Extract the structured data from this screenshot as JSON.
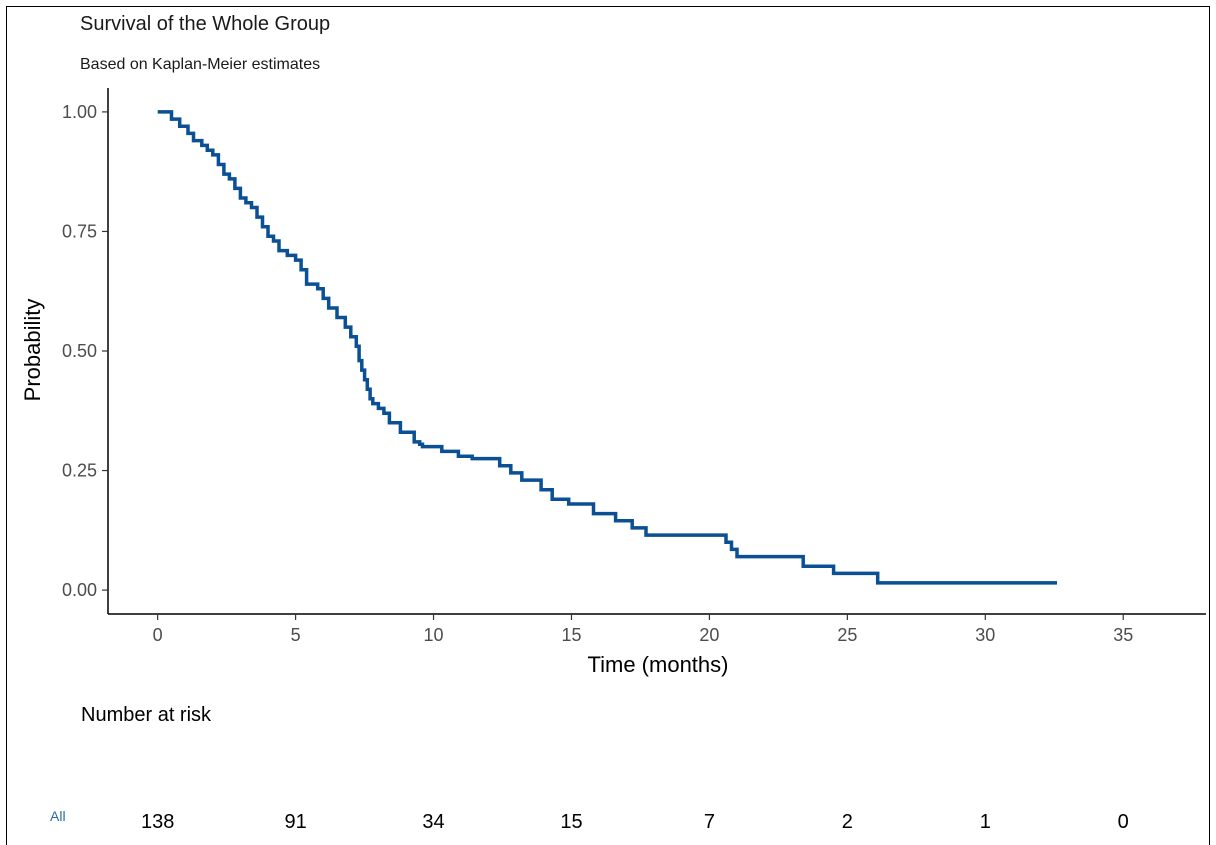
{
  "chart_data": {
    "type": "line",
    "title": "Survival of the Whole Group",
    "subtitle": "Based on Kaplan-Meier estimates",
    "xlabel": "Time (months)",
    "ylabel": "Probability",
    "xlim": [
      -1.8,
      38
    ],
    "ylim": [
      -0.05,
      1.05
    ],
    "x_ticks": [
      0,
      5,
      10,
      15,
      20,
      25,
      30,
      35
    ],
    "x_tick_labels": [
      "0",
      "5",
      "10",
      "15",
      "20",
      "25",
      "30",
      "35"
    ],
    "y_ticks": [
      0,
      0.25,
      0.5,
      0.75,
      1.0
    ],
    "y_tick_labels": [
      "0.00",
      "0.25",
      "0.50",
      "0.75",
      "1.00"
    ],
    "grid": false,
    "line_color": "#0b4f94",
    "series": [
      {
        "step": "post",
        "x": [
          0,
          0.5,
          0.8,
          1.1,
          1.3,
          1.6,
          1.8,
          2.0,
          2.2,
          2.4,
          2.6,
          2.8,
          3.0,
          3.2,
          3.4,
          3.6,
          3.8,
          4.0,
          4.2,
          4.4,
          4.7,
          5.0,
          5.2,
          5.4,
          5.8,
          6.0,
          6.2,
          6.5,
          6.8,
          7.0,
          7.2,
          7.3,
          7.4,
          7.5,
          7.6,
          7.7,
          7.8,
          8.0,
          8.2,
          8.4,
          8.8,
          9.3,
          9.5,
          9.6,
          10.3,
          10.9,
          11.4,
          12.4,
          12.8,
          13.2,
          13.9,
          14.3,
          14.9,
          15.8,
          16.6,
          17.2,
          17.7,
          20.6,
          20.8,
          21.0,
          23.4,
          24.5,
          26.1,
          32.6
        ],
        "y": [
          1.0,
          0.985,
          0.97,
          0.955,
          0.94,
          0.93,
          0.92,
          0.91,
          0.89,
          0.87,
          0.86,
          0.84,
          0.82,
          0.81,
          0.8,
          0.78,
          0.76,
          0.74,
          0.73,
          0.71,
          0.7,
          0.69,
          0.67,
          0.64,
          0.63,
          0.61,
          0.59,
          0.57,
          0.55,
          0.53,
          0.51,
          0.48,
          0.46,
          0.44,
          0.42,
          0.4,
          0.39,
          0.38,
          0.37,
          0.35,
          0.33,
          0.31,
          0.305,
          0.3,
          0.29,
          0.28,
          0.275,
          0.26,
          0.245,
          0.23,
          0.21,
          0.19,
          0.18,
          0.16,
          0.145,
          0.13,
          0.115,
          0.1,
          0.085,
          0.07,
          0.05,
          0.035,
          0.015,
          0.015
        ]
      }
    ],
    "risk_table": {
      "title": "Number at risk",
      "strata_label": "All",
      "times": [
        0,
        5,
        10,
        15,
        20,
        25,
        30,
        35
      ],
      "values": [
        "138",
        "91",
        "34",
        "15",
        "7",
        "2",
        "1",
        "0"
      ]
    }
  }
}
